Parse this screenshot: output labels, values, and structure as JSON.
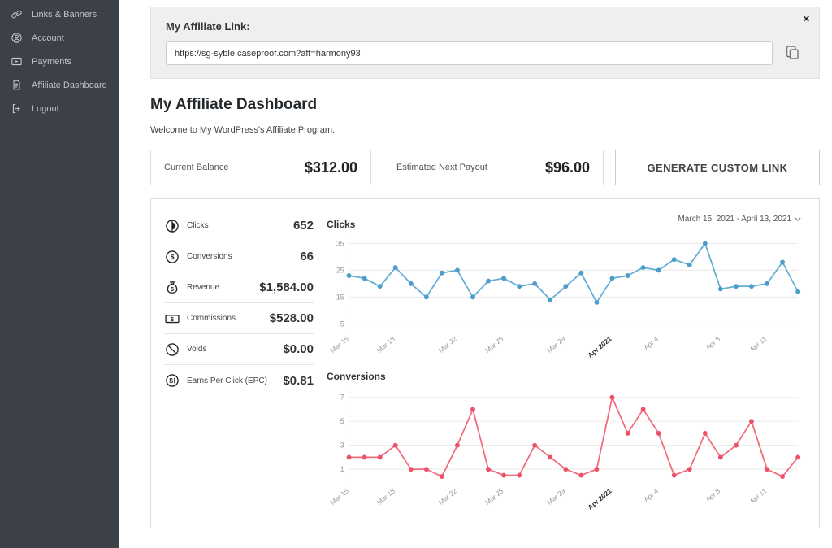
{
  "icons": {
    "close": "✕"
  },
  "sidebar": {
    "items": [
      {
        "label": "Links & Banners"
      },
      {
        "label": "Account"
      },
      {
        "label": "Payments"
      },
      {
        "label": "Affiliate Dashboard"
      },
      {
        "label": "Logout"
      }
    ]
  },
  "link_card": {
    "title": "My Affiliate Link:",
    "url": "https://sg-syble.caseproof.com?aff=harmony93"
  },
  "page": {
    "title": "My Affiliate Dashboard",
    "subtitle": "Welcome to My WordPress's Affiliate Program."
  },
  "summary": {
    "current_balance_label": "Current Balance",
    "current_balance_value": "$312.00",
    "next_payout_label": "Estimated Next Payout",
    "next_payout_value": "$96.00",
    "generate_button": "GENERATE CUSTOM LINK"
  },
  "stats": [
    {
      "label": "Clicks",
      "value": "652"
    },
    {
      "label": "Conversions",
      "value": "66"
    },
    {
      "label": "Revenue",
      "value": "$1,584.00"
    },
    {
      "label": "Commissions",
      "value": "$528.00"
    },
    {
      "label": "Voids",
      "value": "$0.00"
    },
    {
      "label": "Earns Per Click (EPC)",
      "value": "$0.81"
    }
  ],
  "date_range": "March 15, 2021 - April 13, 2021",
  "chart_data": [
    {
      "type": "line",
      "title": "Clicks",
      "color": "#64aed6",
      "point_color": "#4c9dc9",
      "values": [
        23,
        22,
        19,
        26,
        20,
        15,
        24,
        25,
        15,
        21,
        22,
        19,
        20,
        14,
        19,
        24,
        13,
        22,
        23,
        26,
        25,
        29,
        27,
        35,
        18,
        19,
        19,
        20,
        28,
        17
      ],
      "ylim": [
        3,
        37
      ],
      "yticks": [
        5,
        15,
        25,
        35
      ],
      "xticks": [
        {
          "i": 0,
          "label": "Mar 15"
        },
        {
          "i": 3,
          "label": "Mar 18"
        },
        {
          "i": 7,
          "label": "Mar 22"
        },
        {
          "i": 10,
          "label": "Mar 25"
        },
        {
          "i": 14,
          "label": "Mar 29"
        },
        {
          "i": 17,
          "label": "Apr 2021",
          "bold": true
        },
        {
          "i": 20,
          "label": "Apr 4"
        },
        {
          "i": 24,
          "label": "Apr 8"
        },
        {
          "i": 27,
          "label": "Apr 11"
        }
      ]
    },
    {
      "type": "line",
      "title": "Conversions",
      "color": "#f16b7d",
      "point_color": "#ed5168",
      "values": [
        2,
        2,
        2,
        3,
        1,
        1,
        0.4,
        3,
        6,
        1,
        0.5,
        0.5,
        3,
        2,
        1,
        0.5,
        1,
        7,
        4,
        6,
        4,
        0.5,
        1,
        4,
        2,
        3,
        5,
        1,
        0.4,
        2
      ],
      "ylim": [
        0,
        7.6
      ],
      "yticks": [
        1,
        3,
        5,
        7
      ],
      "xticks": [
        {
          "i": 0,
          "label": "Mar 15"
        },
        {
          "i": 3,
          "label": "Mar 18"
        },
        {
          "i": 7,
          "label": "Mar 22"
        },
        {
          "i": 10,
          "label": "Mar 25"
        },
        {
          "i": 14,
          "label": "Mar 29"
        },
        {
          "i": 17,
          "label": "Apr 2021",
          "bold": true
        },
        {
          "i": 20,
          "label": "Apr 4"
        },
        {
          "i": 24,
          "label": "Apr 8"
        },
        {
          "i": 27,
          "label": "Apr 11"
        }
      ]
    }
  ]
}
